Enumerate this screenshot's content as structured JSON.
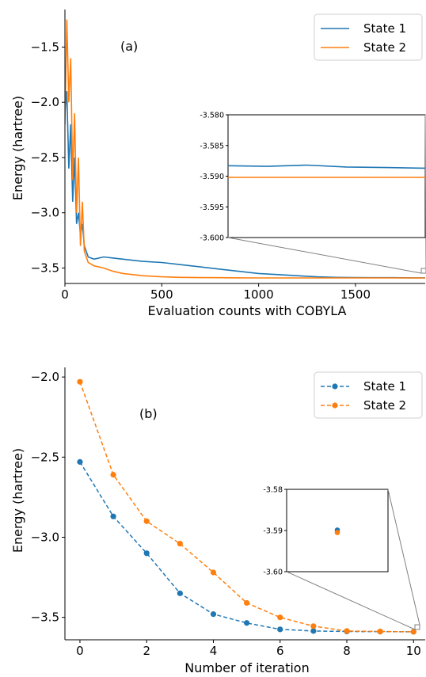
{
  "chart_data": [
    {
      "type": "line",
      "panel_label": "(a)",
      "xlabel": "Evaluation counts with COBYLA",
      "ylabel": "Energy (hartree)",
      "xlim": [
        0,
        1860
      ],
      "ylim": [
        -3.64,
        -1.16
      ],
      "xticks": [
        0,
        500,
        1000,
        1500
      ],
      "xtick_labels": [
        "0",
        "500",
        "1000",
        "1500"
      ],
      "yticks": [
        -1.5,
        -2.0,
        -2.5,
        -3.0,
        -3.5
      ],
      "ytick_labels": [
        "−1.5",
        "−2.0",
        "−2.5",
        "−3.0",
        "−3.5"
      ],
      "legend": {
        "position": "top-right",
        "entries": [
          "State 1",
          "State 2"
        ]
      },
      "series": [
        {
          "name": "State 1",
          "color": "#1f77b4",
          "x": [
            0,
            10,
            20,
            30,
            40,
            50,
            60,
            70,
            80,
            90,
            100,
            120,
            150,
            200,
            250,
            300,
            400,
            500,
            600,
            700,
            800,
            900,
            1000,
            1100,
            1200,
            1300,
            1400,
            1500,
            1600,
            1700,
            1800,
            1860
          ],
          "y": [
            -2.1,
            -1.9,
            -2.6,
            -2.2,
            -2.9,
            -2.5,
            -3.1,
            -3.0,
            -3.2,
            -3.1,
            -3.3,
            -3.4,
            -3.42,
            -3.4,
            -3.41,
            -3.42,
            -3.44,
            -3.45,
            -3.47,
            -3.49,
            -3.51,
            -3.53,
            -3.55,
            -3.56,
            -3.57,
            -3.58,
            -3.585,
            -3.587,
            -3.588,
            -3.588,
            -3.589,
            -3.589
          ]
        },
        {
          "name": "State 2",
          "color": "#ff7f0e",
          "x": [
            0,
            10,
            20,
            30,
            40,
            50,
            60,
            70,
            80,
            90,
            100,
            120,
            150,
            200,
            250,
            300,
            400,
            500,
            600,
            700,
            800,
            900,
            1000,
            1200,
            1400,
            1600,
            1860
          ],
          "y": [
            -2.2,
            -1.25,
            -2.0,
            -1.6,
            -2.7,
            -2.1,
            -3.0,
            -2.5,
            -3.3,
            -2.9,
            -3.35,
            -3.45,
            -3.48,
            -3.5,
            -3.53,
            -3.55,
            -3.57,
            -3.58,
            -3.585,
            -3.587,
            -3.588,
            -3.589,
            -3.59,
            -3.59,
            -3.59,
            -3.59,
            -3.59
          ]
        }
      ],
      "inset": {
        "ylim": [
          -3.6,
          -3.58
        ],
        "yticks": [
          -3.58,
          -3.585,
          -3.59,
          -3.595,
          -3.6
        ],
        "ytick_labels": [
          "-3.580",
          "-3.585",
          "-3.590",
          "-3.595",
          "-3.600"
        ],
        "series": [
          {
            "name": "State 1",
            "x": [
              0,
              0.2,
              0.4,
              0.6,
              0.8,
              1.0
            ],
            "y": [
              -3.5883,
              -3.5884,
              -3.5882,
              -3.5885,
              -3.5886,
              -3.5887
            ]
          },
          {
            "name": "State 2",
            "x": [
              0,
              1.0
            ],
            "y": [
              -3.5902,
              -3.5902
            ]
          }
        ]
      }
    },
    {
      "type": "line",
      "panel_label": "(b)",
      "xlabel": "Number of iteration",
      "ylabel": "Energy (hartree)",
      "xlim": [
        -0.45,
        10.35
      ],
      "ylim": [
        -3.64,
        -1.94
      ],
      "xticks": [
        0,
        2,
        4,
        6,
        8,
        10
      ],
      "xtick_labels": [
        "0",
        "2",
        "4",
        "6",
        "8",
        "10"
      ],
      "yticks": [
        -2.0,
        -2.5,
        -3.0,
        -3.5
      ],
      "ytick_labels": [
        "−2.0",
        "−2.5",
        "−3.0",
        "−3.5"
      ],
      "legend": {
        "position": "top-right",
        "entries": [
          "State 1",
          "State 2"
        ]
      },
      "series": [
        {
          "name": "State 1",
          "color": "#1f77b4",
          "x": [
            0,
            1,
            2,
            3,
            4,
            5,
            6,
            7,
            8,
            9,
            10
          ],
          "y": [
            -2.53,
            -2.87,
            -3.1,
            -3.35,
            -3.48,
            -3.535,
            -3.575,
            -3.585,
            -3.588,
            -3.589,
            -3.59
          ]
        },
        {
          "name": "State 2",
          "color": "#ff7f0e",
          "x": [
            0,
            1,
            2,
            3,
            4,
            5,
            6,
            7,
            8,
            9,
            10
          ],
          "y": [
            -2.03,
            -2.61,
            -2.9,
            -3.04,
            -3.22,
            -3.41,
            -3.5,
            -3.555,
            -3.585,
            -3.588,
            -3.59
          ]
        }
      ],
      "inset": {
        "ylim": [
          -3.6,
          -3.58
        ],
        "yticks": [
          -3.58,
          -3.59,
          -3.6
        ],
        "ytick_labels": [
          "-3.58",
          "-3.59",
          "-3.60"
        ],
        "series": [
          {
            "name": "State 1",
            "x": [
              10
            ],
            "y": [
              -3.5899
            ]
          },
          {
            "name": "State 2",
            "x": [
              10
            ],
            "y": [
              -3.5905
            ]
          }
        ]
      }
    }
  ]
}
